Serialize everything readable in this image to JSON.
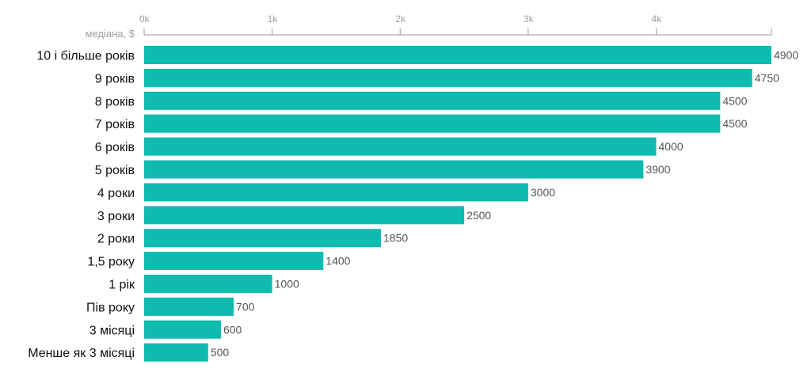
{
  "chart_data": {
    "type": "bar",
    "orientation": "horizontal",
    "axis_title": "медіана, $",
    "ticks": [
      0,
      1000,
      2000,
      3000,
      4000
    ],
    "tick_labels": [
      "0k",
      "1k",
      "2k",
      "3k",
      "4k"
    ],
    "xlim": [
      0,
      4900
    ],
    "categories": [
      "10 і більше років",
      "9 років",
      "8 років",
      "7 років",
      "6 років",
      "5 років",
      "4 роки",
      "3 роки",
      "2 роки",
      "1,5 року",
      "1 рік",
      "Пів року",
      "3 місяці",
      "Менше як 3 місяці"
    ],
    "values": [
      4900,
      4750,
      4500,
      4500,
      4000,
      3900,
      3000,
      2500,
      1850,
      1400,
      1000,
      700,
      600,
      500
    ],
    "value_labels": [
      "4900",
      "4750",
      "4500",
      "4500",
      "4000",
      "3900",
      "3000",
      "2500",
      "1850",
      "1400",
      "1000",
      "700",
      "600",
      "500"
    ],
    "bar_color": "#0fbbaf",
    "axis_color": "#999999",
    "grid": false,
    "legend": "none"
  }
}
